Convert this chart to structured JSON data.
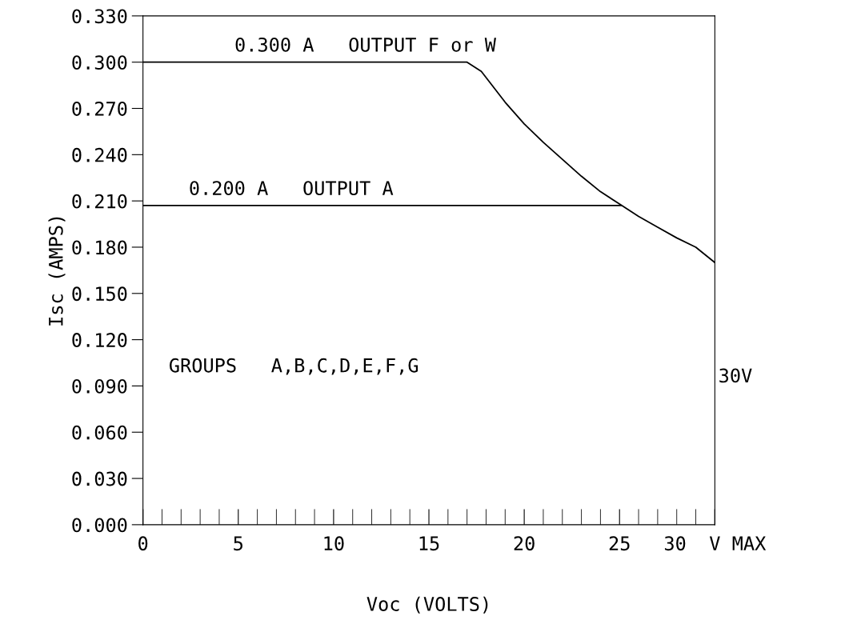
{
  "chart_data": {
    "type": "line",
    "xlabel": "Voc (VOLTS)",
    "ylabel": "Isc (AMPS)",
    "series": [
      {
        "color": "#000000",
        "x": [
          0,
          17,
          17.75,
          19,
          20,
          21,
          22,
          23,
          24,
          25,
          26,
          27,
          28,
          29,
          30
        ],
        "values": [
          0.3,
          0.3,
          0.294,
          0.274,
          0.26,
          0.248,
          0.237,
          0.226,
          0.216,
          0.208,
          0.2,
          0.193,
          0.186,
          0.18,
          0.17
        ]
      },
      {
        "color": "#000000",
        "x": [
          0,
          25.1
        ],
        "values": [
          0.207,
          0.207
        ]
      }
    ],
    "xlim": [
      0,
      30
    ],
    "ylim": [
      0,
      0.33
    ],
    "xticks": [
      0,
      5,
      10,
      15,
      20,
      25,
      {
        "value": 30,
        "label": "30  V MAX"
      }
    ],
    "yticks": [
      {
        "value": 0,
        "label": "0.000"
      },
      {
        "value": 0.03,
        "label": "0.030"
      },
      {
        "value": 0.06,
        "label": "0.060"
      },
      {
        "value": 0.09,
        "label": "0.090"
      },
      {
        "value": 0.12,
        "label": "0.120"
      },
      {
        "value": 0.15,
        "label": "0.150"
      },
      {
        "value": 0.18,
        "label": "0.180"
      },
      {
        "value": 0.21,
        "label": "0.210"
      },
      {
        "value": 0.24,
        "label": "0.240"
      },
      {
        "value": 0.27,
        "label": "0.270"
      },
      {
        "value": 0.3,
        "label": "0.300"
      },
      {
        "value": 0.33,
        "label": "0.330"
      }
    ],
    "annotations": [
      {
        "text": "0.300 A   OUTPUT F or W",
        "x": 4.8,
        "y": 0.3
      },
      {
        "text": "0.200 A   OUTPUT A",
        "x": 2.4,
        "y": 0.207
      },
      "30V",
      "GROUPS   A,B,C,D,E,F,G"
    ],
    "grid": false,
    "legend": false,
    "marker": "none",
    "line_style": "solid"
  }
}
